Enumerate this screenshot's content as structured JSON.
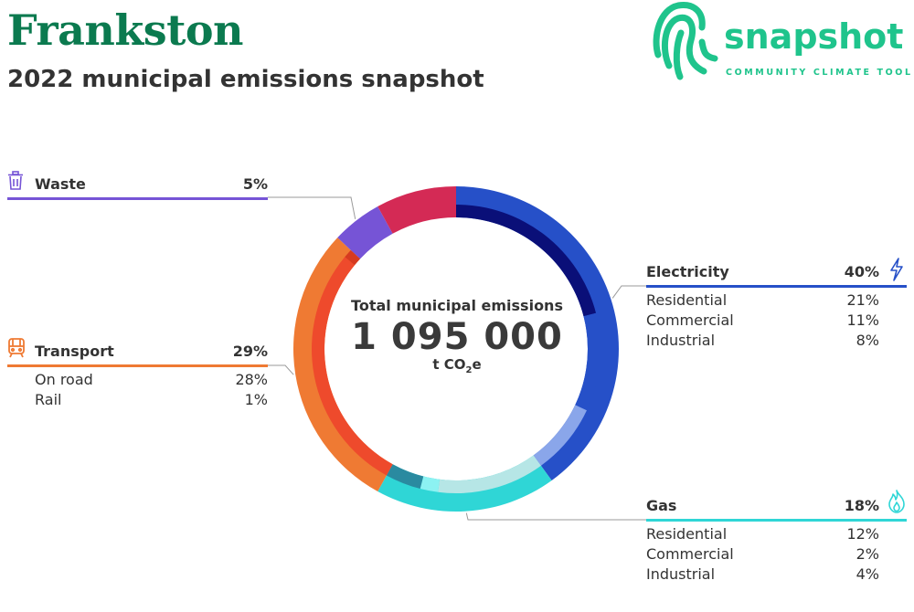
{
  "header": {
    "title": "Frankston",
    "subtitle": "2022 municipal emissions snapshot"
  },
  "logo": {
    "word": "snapshot",
    "tagline": "COMMUNITY CLIMATE TOOL",
    "color": "#1fc48c"
  },
  "center": {
    "label": "Total municipal emissions",
    "total": "1 095 000",
    "unit_prefix": "t CO",
    "unit_sub": "2",
    "unit_suffix": "e"
  },
  "categories": {
    "electricity": {
      "name": "Electricity",
      "pct": "40%",
      "color": "#2650c8",
      "icon": "lightning-icon",
      "rows": [
        {
          "label": "Residential",
          "value": "21%"
        },
        {
          "label": "Commercial",
          "value": "11%"
        },
        {
          "label": "Industrial",
          "value": "8%"
        }
      ]
    },
    "gas": {
      "name": "Gas",
      "pct": "18%",
      "color": "#2fd6d6",
      "icon": "flame-icon",
      "rows": [
        {
          "label": "Residential",
          "value": "12%"
        },
        {
          "label": "Commercial",
          "value": "2%"
        },
        {
          "label": "Industrial",
          "value": "4%"
        }
      ]
    },
    "transport": {
      "name": "Transport",
      "pct": "29%",
      "color": "#ef7a33",
      "icon": "train-icon",
      "rows": [
        {
          "label": "On road",
          "value": "28%"
        },
        {
          "label": "Rail",
          "value": "1%"
        }
      ]
    },
    "waste": {
      "name": "Waste",
      "pct": "5%",
      "color": "#7654d6",
      "icon": "bin-icon"
    }
  },
  "chart_data": {
    "type": "pie",
    "title": "2022 municipal emissions snapshot",
    "total": 1095000,
    "unit": "t CO2e",
    "series": [
      {
        "name": "Electricity",
        "value": 40,
        "color": "#2650c8"
      },
      {
        "name": "Gas",
        "value": 18,
        "color": "#2fd6d6"
      },
      {
        "name": "Transport",
        "value": 29,
        "color": "#ef7a33"
      },
      {
        "name": "Waste",
        "value": 5,
        "color": "#7654d6"
      },
      {
        "value": 8,
        "color": "#d42a55"
      }
    ],
    "sub_series": [
      {
        "parent": "Electricity",
        "name": "Residential",
        "value": 21,
        "color": "#0a0f78"
      },
      {
        "parent": "Electricity",
        "name": "Commercial",
        "value": 11,
        "color": "#2650c8"
      },
      {
        "parent": "Electricity",
        "name": "Industrial",
        "value": 8,
        "color": "#8aa6ea"
      },
      {
        "parent": "Gas",
        "name": "Residential",
        "value": 12,
        "color": "#b6e6e6"
      },
      {
        "parent": "Gas",
        "name": "Commercial",
        "value": 2,
        "color": "#8cf2f2"
      },
      {
        "parent": "Gas",
        "name": "Industrial",
        "value": 4,
        "color": "#2a8aa0"
      },
      {
        "parent": "Transport",
        "name": "On road",
        "value": 28,
        "color": "#ee4a2c"
      },
      {
        "parent": "Transport",
        "name": "Rail",
        "value": 1,
        "color": "#d63a20"
      }
    ]
  }
}
